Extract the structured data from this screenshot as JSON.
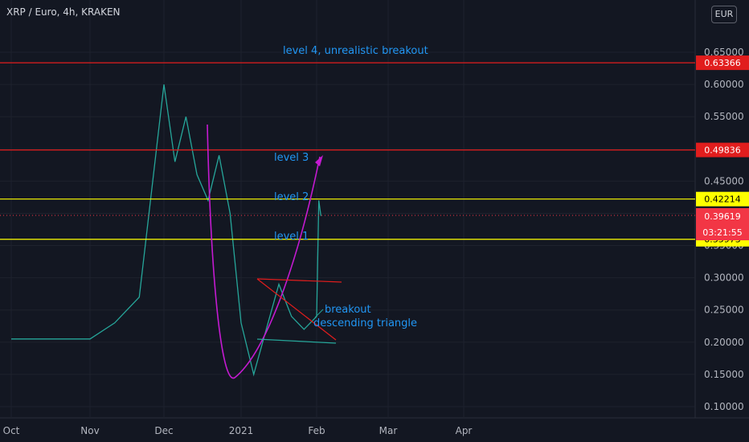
{
  "header": {
    "title": "XRP / Euro, 4h, KRAKEN",
    "currency_button": "EUR"
  },
  "chart_data": {
    "type": "line",
    "ylim": [
      0.08,
      0.68
    ],
    "x_ticks": [
      "Oct",
      "Nov",
      "Dec",
      "2021",
      "Feb",
      "Mar",
      "Apr"
    ],
    "y_ticks": [
      "0.10000",
      "0.15000",
      "0.20000",
      "0.25000",
      "0.30000",
      "0.35000",
      "0.40000",
      "0.45000",
      "0.50000",
      "0.55000",
      "0.60000",
      "0.65000"
    ],
    "price_series": [
      [
        "Oct",
        0.205
      ],
      [
        "Nov",
        0.205
      ],
      [
        "Nov",
        0.23
      ],
      [
        "Nov",
        0.27
      ],
      [
        "Dec",
        0.6
      ],
      [
        "Dec",
        0.48
      ],
      [
        "Dec",
        0.55
      ],
      [
        "Dec",
        0.46
      ],
      [
        "Dec",
        0.42
      ],
      [
        "Dec",
        0.49
      ],
      [
        "Dec",
        0.4
      ],
      [
        "2021",
        0.23
      ],
      [
        "2021",
        0.15
      ],
      [
        "2021",
        0.22
      ],
      [
        "2021",
        0.29
      ],
      [
        "2021",
        0.24
      ],
      [
        "2021",
        0.22
      ],
      [
        "Feb",
        0.24
      ],
      [
        "Feb",
        0.42
      ],
      [
        "Feb",
        0.396
      ]
    ],
    "horizontal_levels": [
      {
        "value": 0.63366,
        "label": "0.63366",
        "color": "#e11d1d"
      },
      {
        "value": 0.49836,
        "label": "0.49836",
        "color": "#e11d1d"
      },
      {
        "value": 0.42214,
        "label": "0.42214",
        "color": "#ffff00"
      },
      {
        "value": 0.35973,
        "label": "0.35973",
        "color": "#ffff00"
      }
    ],
    "current_price": {
      "value": 0.39619,
      "label": "0.39619",
      "countdown": "03:21:55",
      "color": "#f23645"
    },
    "annotations": [
      {
        "text": "level 4, unrealistic breakout",
        "color": "#2196f3"
      },
      {
        "text": "level 3",
        "color": "#2196f3"
      },
      {
        "text": "level 2",
        "color": "#2196f3"
      },
      {
        "text": "level 1",
        "color": "#2196f3"
      },
      {
        "text": "breakout",
        "color": "#2196f3"
      },
      {
        "text": "descending triangle",
        "color": "#2196f3"
      }
    ]
  }
}
